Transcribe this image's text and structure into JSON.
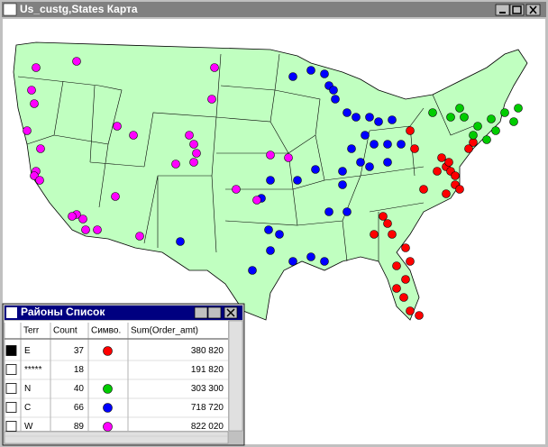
{
  "window": {
    "title": "Us_custg,States Карта"
  },
  "list_window": {
    "title": "Районы Список",
    "table": {
      "columns": [
        "Terr",
        "Count",
        "Симво.",
        "Sum(Order_amt)"
      ],
      "rows": [
        {
          "terr": "E",
          "count": 37,
          "symbol_color": "#ff0000",
          "sum": "380 820"
        },
        {
          "terr": "*****",
          "count": 18,
          "symbol_color": null,
          "sum": "191 820"
        },
        {
          "terr": "N",
          "count": 40,
          "symbol_color": "#00cc00",
          "sum": "303 300"
        },
        {
          "terr": "C",
          "count": 66,
          "symbol_color": "#0000ff",
          "sum": "718 720"
        },
        {
          "terr": "W",
          "count": 89,
          "symbol_color": "#ff00ff",
          "sum": "822 020"
        }
      ]
    }
  }
}
